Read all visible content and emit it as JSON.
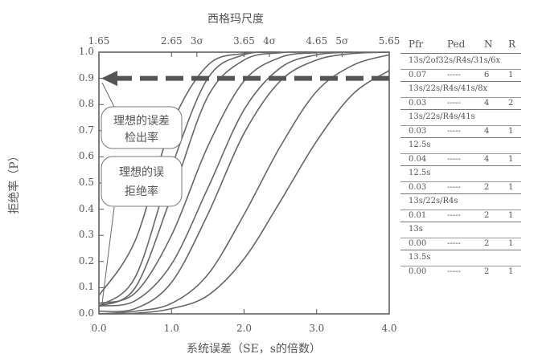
{
  "chart_data": {
    "type": "line",
    "title": "西格玛尺度",
    "xlabel": "系统误差（SE，s的倍数）",
    "ylabel": "拒绝率（P）",
    "xlim": [
      0.0,
      4.0
    ],
    "ylim": [
      0.0,
      1.0
    ],
    "x_ticks": [
      "0.0",
      "1.0",
      "2.0",
      "3.0",
      "4.0"
    ],
    "y_ticks": [
      "0.0",
      "0.1",
      "0.2",
      "0.3",
      "0.4",
      "0.5",
      "0.6",
      "0.7",
      "0.8",
      "0.9",
      "1.0"
    ],
    "top_ticks": [
      "1.65",
      "2.65",
      "3σ",
      "3.65",
      "4σ",
      "4.65",
      "5σ",
      "5.65"
    ],
    "top_tick_x": [
      0.0,
      1.0,
      1.35,
      2.0,
      2.35,
      3.0,
      3.35,
      4.0
    ],
    "ideal_detection_level": 0.9,
    "annotations": [
      "理想的误差检出率",
      "理想的误拒绝率"
    ],
    "annotation_lines": [
      [
        "理想的误差",
        "检出率"
      ],
      [
        "理想的误",
        "拒绝率"
      ]
    ],
    "grid": false,
    "series": [
      {
        "x": [
          0.0,
          0.5,
          1.0,
          1.5,
          2.0,
          2.5
        ],
        "values": [
          0.07,
          0.28,
          0.72,
          0.95,
          0.995,
          1.0
        ]
      },
      {
        "x": [
          0.0,
          0.5,
          1.0,
          1.5,
          2.0,
          2.5
        ],
        "values": [
          0.03,
          0.14,
          0.56,
          0.9,
          0.99,
          1.0
        ]
      },
      {
        "x": [
          0.0,
          0.5,
          1.0,
          1.5,
          2.0,
          2.5,
          3.0
        ],
        "values": [
          0.03,
          0.1,
          0.45,
          0.83,
          0.97,
          0.998,
          1.0
        ]
      },
      {
        "x": [
          0.0,
          0.5,
          1.0,
          1.5,
          2.0,
          2.5,
          3.0,
          3.5
        ],
        "values": [
          0.04,
          0.08,
          0.3,
          0.64,
          0.89,
          0.98,
          0.998,
          1.0
        ]
      },
      {
        "x": [
          0.0,
          0.5,
          1.0,
          1.5,
          2.0,
          2.5,
          3.0,
          3.5
        ],
        "values": [
          0.03,
          0.05,
          0.19,
          0.48,
          0.78,
          0.94,
          0.99,
          1.0
        ]
      },
      {
        "x": [
          0.0,
          0.5,
          1.0,
          1.5,
          2.0,
          2.5,
          3.0,
          3.5,
          4.0
        ],
        "values": [
          0.01,
          0.02,
          0.12,
          0.38,
          0.69,
          0.89,
          0.97,
          0.995,
          1.0
        ]
      },
      {
        "x": [
          0.0,
          0.5,
          1.0,
          1.5,
          2.0,
          2.5,
          3.0,
          3.5,
          4.0
        ],
        "values": [
          0.0,
          0.01,
          0.04,
          0.15,
          0.38,
          0.64,
          0.85,
          0.95,
          0.99
        ]
      },
      {
        "x": [
          0.0,
          0.5,
          1.0,
          1.5,
          2.0,
          2.5,
          3.0,
          3.5,
          4.0
        ],
        "values": [
          0.0,
          0.002,
          0.02,
          0.07,
          0.21,
          0.43,
          0.66,
          0.84,
          0.93
        ]
      }
    ],
    "table": {
      "headers": [
        "Pfr",
        "Ped",
        "N",
        "R"
      ],
      "rows": [
        {
          "rule": "13s/2of32s/R4s/31s/6x",
          "pfr": "0.07",
          "ped": "-----",
          "n": "6",
          "r": "1"
        },
        {
          "rule": "13s/22s/R4s/41s/8x",
          "pfr": "0.03",
          "ped": "-----",
          "n": "4",
          "r": "2"
        },
        {
          "rule": "13s/22s/R4s/41s",
          "pfr": "0.03",
          "ped": "-----",
          "n": "4",
          "r": "1"
        },
        {
          "rule": "12.5s",
          "pfr": "0.04",
          "ped": "-----",
          "n": "4",
          "r": "1"
        },
        {
          "rule": "12.5s",
          "pfr": "0.03",
          "ped": "-----",
          "n": "2",
          "r": "1"
        },
        {
          "rule": "13s/22s/R4s",
          "pfr": "0.01",
          "ped": "-----",
          "n": "2",
          "r": "1"
        },
        {
          "rule": "13s",
          "pfr": "0.00",
          "ped": "-----",
          "n": "2",
          "r": "1"
        },
        {
          "rule": "13.5s",
          "pfr": "0.00",
          "ped": "-----",
          "n": "2",
          "r": "1"
        }
      ]
    }
  }
}
